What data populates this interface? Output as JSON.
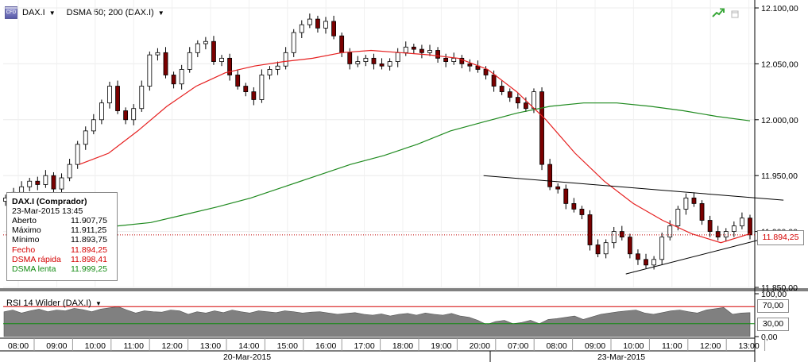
{
  "toolbar": {
    "symbol_icon_text": "CFD",
    "symbol": "DAX.I",
    "indicator": "DSMA 50; 200 (DAX.I)"
  },
  "infobox": {
    "title": "DAX.I (Comprador)",
    "datetime": "23-Mar-2015 13:45",
    "rows": [
      {
        "label": "Aberto",
        "value": "11.907,75"
      },
      {
        "label": "Máximo",
        "value": "11.911,25"
      },
      {
        "label": "Mínimo",
        "value": "11.893,75"
      },
      {
        "label": "Fecho",
        "value": "11.894,25"
      },
      {
        "label": "DSMA rápida",
        "value": "11.898,41"
      },
      {
        "label": "DSMA lenta",
        "value": "11.999,25"
      }
    ]
  },
  "price_tag": "11.894,25",
  "rsi": {
    "title": "RSI 14 Wilder (DAX.I)",
    "tags": [
      "70,00",
      "30,00"
    ]
  },
  "colors": {
    "fast_ma": "#e62020",
    "slow_ma": "#1f8a1f",
    "rsi_fill": "#808080",
    "bear": "#7a0000",
    "bull": "#ffffff",
    "trendline": "#000000"
  },
  "chart_data": [
    {
      "type": "candlestick",
      "title": "DAX.I",
      "ylim": [
        11850,
        12100
      ],
      "y_tick_labels": [
        "12.100,00",
        "12.050,00",
        "12.000,00",
        "11.950,00",
        "11.900,00",
        "11.850,00"
      ],
      "y_ticks": [
        12100,
        12050,
        12000,
        11950,
        11900,
        11850
      ],
      "x_tick_labels": [
        "08:00",
        "09:00",
        "10:00",
        "11:00",
        "12:00",
        "13:00",
        "14:00",
        "15:00",
        "16:00",
        "17:00",
        "18:00",
        "19:00",
        "20:00",
        "07:00",
        "08:00",
        "09:00",
        "10:00",
        "11:00",
        "12:00",
        "13:00"
      ],
      "date_labels": [
        "20-Mar-2015",
        "23-Mar-2015"
      ],
      "close_path": [
        11930,
        11935,
        11940,
        11945,
        11942,
        11950,
        11938,
        11948,
        11960,
        11978,
        11990,
        12000,
        12015,
        12030,
        12008,
        12000,
        12010,
        12030,
        12058,
        12060,
        12040,
        12032,
        12045,
        12060,
        12068,
        12070,
        12052,
        12055,
        12040,
        12030,
        12025,
        12018,
        12040,
        12045,
        12048,
        12060,
        12078,
        12085,
        12090,
        12082,
        12088,
        12075,
        12060,
        12050,
        12052,
        12055,
        12050,
        12048,
        12052,
        12060,
        12065,
        12063,
        12060,
        12062,
        12055,
        12052,
        12055,
        12050,
        12048,
        12045,
        12040,
        12030,
        12025,
        12020,
        12015,
        12010,
        12025,
        11960,
        11940,
        11938,
        11925,
        11920,
        11915,
        11888,
        11880,
        11890,
        11900,
        11895,
        11880,
        11875,
        11870,
        11875,
        11895,
        11905,
        11920,
        11930,
        11925,
        11910,
        11900,
        11895,
        11900,
        11905,
        11912,
        11897
      ],
      "fast_ma": [
        11960,
        11970,
        11990,
        12012,
        12030,
        12042,
        12048,
        12052,
        12055,
        12060,
        12062,
        12060,
        12058,
        12055,
        12045,
        12025,
        12000,
        11970,
        11945,
        11925,
        11910,
        11898,
        11890,
        11898
      ],
      "slow_ma": [
        11905,
        11908,
        11915,
        11922,
        11930,
        11940,
        11950,
        11960,
        11968,
        11978,
        11990,
        11998,
        12006,
        12012,
        12015,
        12015,
        12012,
        12008,
        12003,
        11999
      ],
      "trendlines": [
        {
          "from": [
            12.1,
            11950
          ],
          "to": [
            19.9,
            11928
          ]
        },
        {
          "from": [
            15.8,
            11862
          ],
          "to": [
            19.9,
            11898
          ]
        }
      ]
    },
    {
      "type": "area",
      "title": "RSI 14 Wilder (DAX.I)",
      "ylim": [
        0,
        100
      ],
      "y_tick_labels": [
        "100,00",
        "70,00",
        "30,00",
        "0,00"
      ],
      "y_ticks": [
        100,
        70,
        30,
        0
      ],
      "levels": [
        70,
        30
      ],
      "values": [
        58,
        62,
        55,
        60,
        64,
        58,
        62,
        60,
        66,
        63,
        58,
        64,
        67,
        70,
        62,
        55,
        60,
        58,
        57,
        62,
        60,
        52,
        58,
        55,
        60,
        56,
        62,
        58,
        55,
        60,
        58,
        56,
        60,
        58,
        55,
        57,
        58,
        55,
        52,
        54,
        56,
        52,
        50,
        53,
        48,
        52,
        54,
        50,
        55,
        52,
        50,
        54,
        48,
        45,
        38,
        28,
        35,
        38,
        30,
        33,
        38,
        30,
        40,
        42,
        45,
        48,
        40,
        46,
        52,
        55,
        58,
        60,
        62,
        55,
        52,
        56,
        60,
        62,
        58,
        55,
        62,
        65,
        68,
        52,
        55,
        56
      ]
    }
  ]
}
